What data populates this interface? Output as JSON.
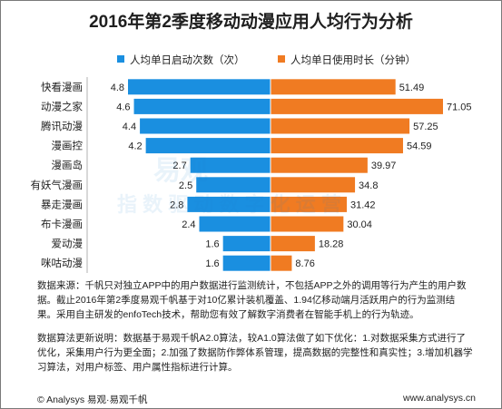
{
  "chart_data": {
    "type": "bar",
    "title": "2016年第2季度移动动漫应用人均行为分析",
    "categories": [
      "快看漫画",
      "动漫之家",
      "腾讯动漫",
      "漫画控",
      "漫画岛",
      "有妖气漫画",
      "暴走漫画",
      "布卡漫画",
      "爱动漫",
      "咪咕动漫"
    ],
    "series": [
      {
        "name": "人均单日启动次数（次）",
        "color": "#1a8fe0",
        "values": [
          4.8,
          4.6,
          4.4,
          4.2,
          2.7,
          2.5,
          2.8,
          2.4,
          1.6,
          1.6
        ]
      },
      {
        "name": "人均单日使用时长（分钟）",
        "color": "#f07b22",
        "values": [
          51.49,
          71.05,
          57.25,
          54.59,
          39.97,
          34.8,
          31.42,
          30.04,
          18.28,
          8.76
        ]
      }
    ],
    "legend_position": "top",
    "grid": false
  },
  "watermark": {
    "line1": "易观",
    "line2": "指 数 驱 动 数 字 化 运 营"
  },
  "notes": {
    "source": "数据来源：千帆只对独立APP中的用户数据进行监测统计，不包括APP之外的调用等行为产生的用户数据。截止2016年第2季度易观千帆基于对10亿累计装机覆盖、1.94亿移动端月活跃用户的行为监测结果。采用自主研发的enfoTech技术，帮助您有效了解数字消费者在智能手机上的行为轨迹。",
    "algorithm": "数据算法更新说明：数据基于易观千帆A2.0算法，较A1.0算法做了如下优化：1.对数据采集方式进行了优化，采集用户行为更全面；2.加强了数据防作弊体系管理，提高数据的完整性和真实性；3.增加机器学习算法，对用户标签、用户属性指标进行计算。"
  },
  "footer": {
    "left": "© Analysys 易观·易观千帆",
    "right": "www.analysys.cn"
  }
}
